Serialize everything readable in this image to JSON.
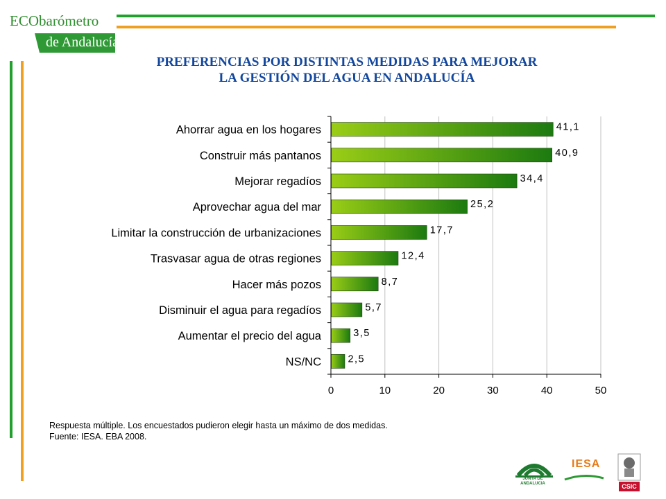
{
  "logo": {
    "top_text": "ECObarómetro",
    "bottom_text": "de Andalucía"
  },
  "title": {
    "line1": "PREFERENCIAS POR DISTINTAS MEDIDAS PARA MEJORAR",
    "line2": "LA GESTIÓN DEL AGUA EN ANDALUCÍA"
  },
  "chart_data": {
    "type": "bar",
    "orientation": "horizontal",
    "categories": [
      "Ahorrar agua en los hogares",
      "Construir más pantanos",
      "Mejorar regadíos",
      "Aprovechar agua del mar",
      "Limitar la construcción de urbanizaciones",
      "Trasvasar agua de otras regiones",
      "Hacer más pozos",
      "Disminuir el agua para regadíos",
      "Aumentar el precio del agua",
      "NS/NC"
    ],
    "values": [
      41.1,
      40.9,
      34.4,
      25.2,
      17.7,
      12.4,
      8.7,
      5.7,
      3.5,
      2.5
    ],
    "value_labels": [
      "41,1",
      "40,9",
      "34,4",
      "25,2",
      "17,7",
      "12,4",
      "8,7",
      "5,7",
      "3,5",
      "2,5"
    ],
    "xlim": [
      0,
      50
    ],
    "xticks": [
      0,
      10,
      20,
      30,
      40,
      50
    ],
    "grid": true,
    "colors": {
      "bar_start": "#9acd16",
      "bar_end": "#1c7a10",
      "grid": "#c0c0c0",
      "axis": "#000000"
    }
  },
  "notes": {
    "line1": "Respuesta múltiple. Los encuestados pudieron elegir hasta un máximo de dos medidas.",
    "line2": "Fuente: IESA. EBA 2008."
  },
  "footer_logos": {
    "junta": "JUNTA DE ANDALUCIA",
    "iesa": "IESA",
    "csic": "CSIC"
  },
  "decor_colors": {
    "green": "#22a02e",
    "orange": "#f0a020",
    "title": "#13479d"
  }
}
